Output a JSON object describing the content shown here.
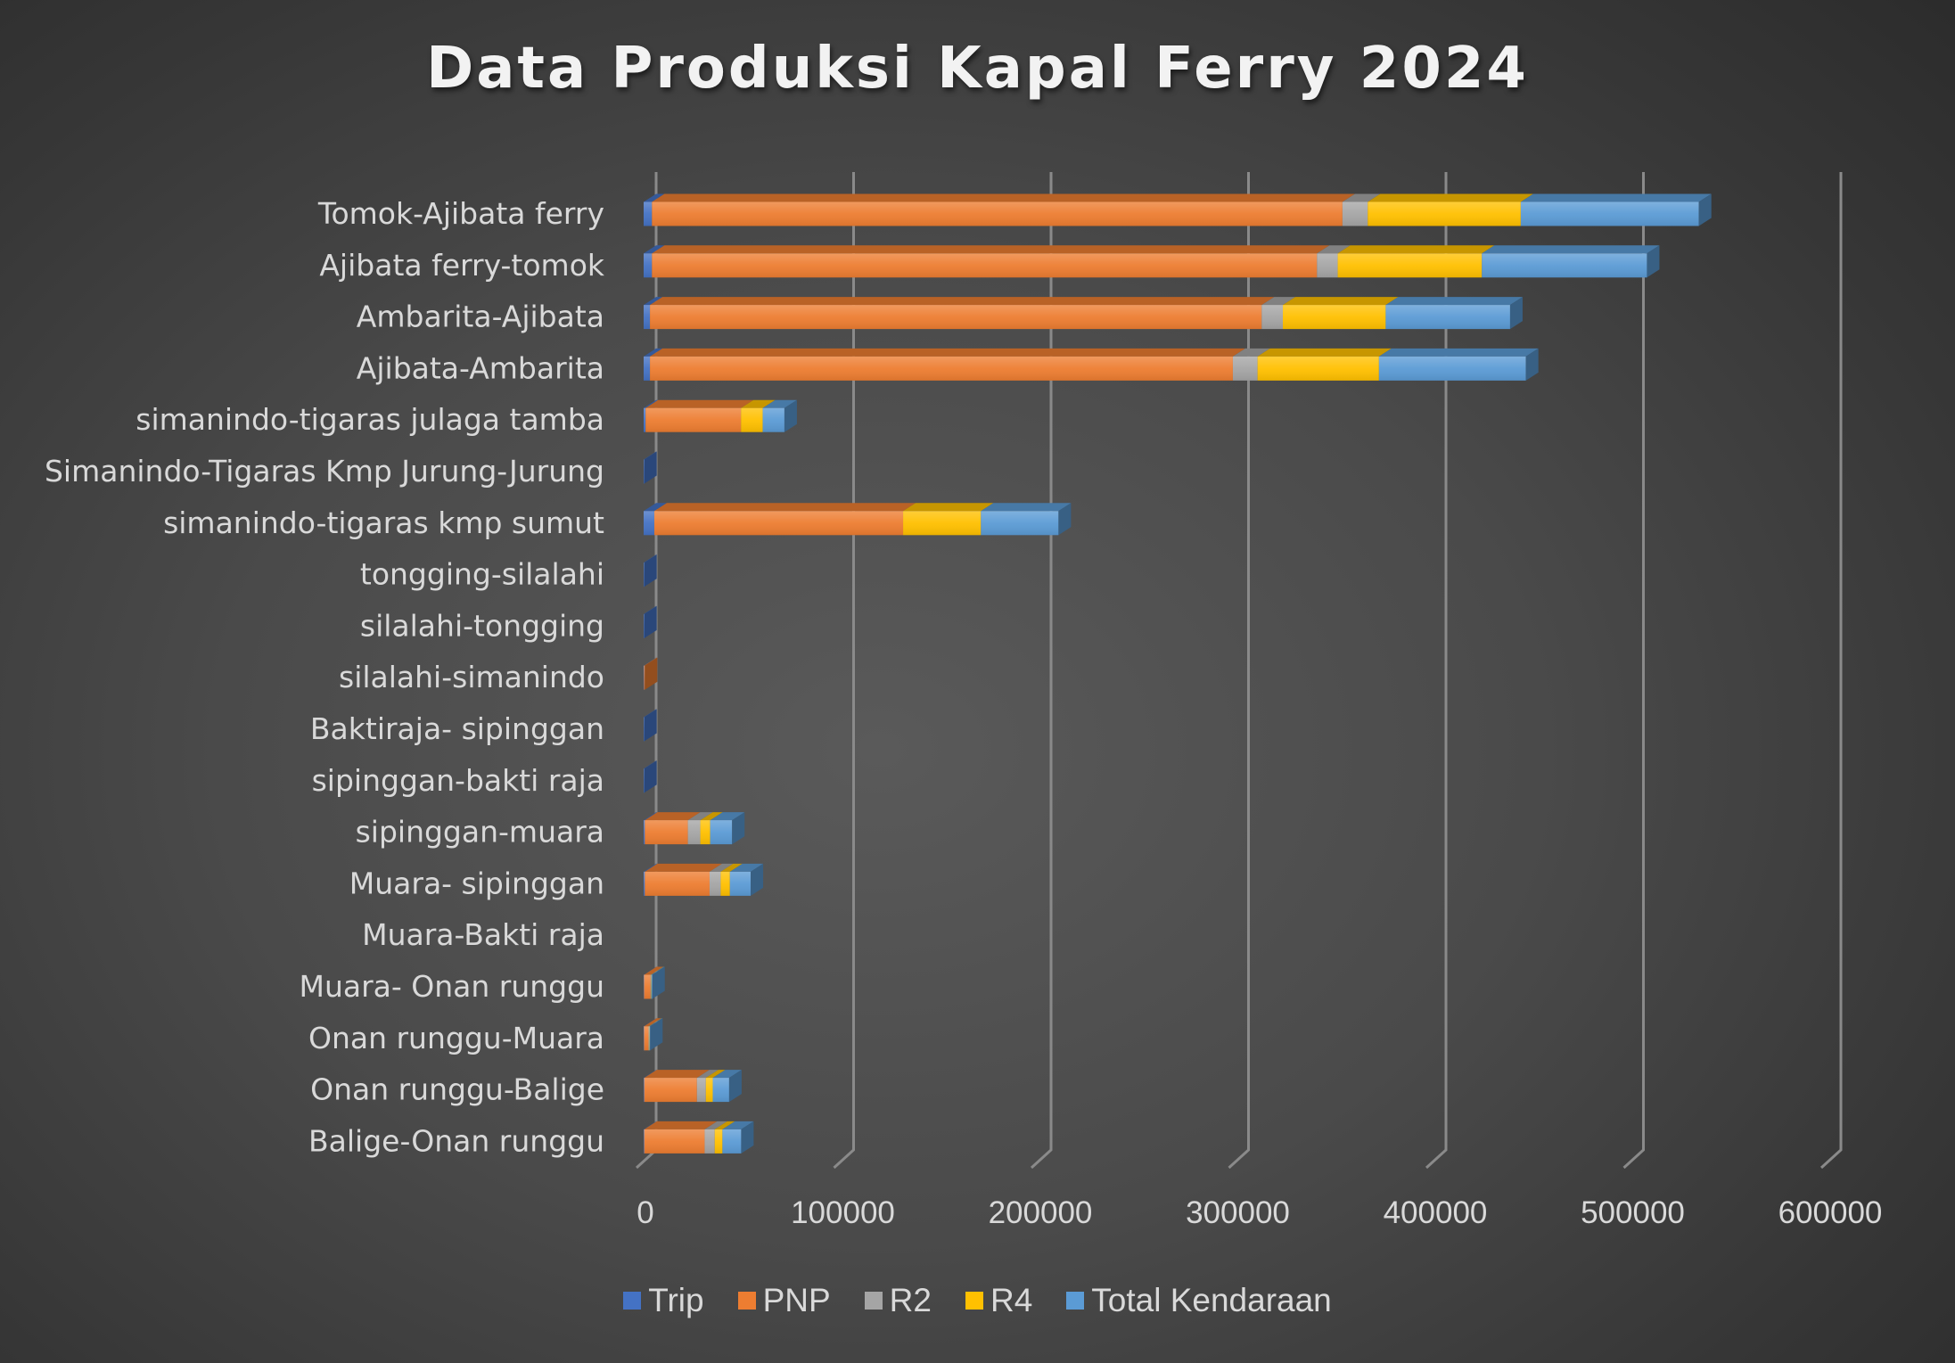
{
  "chart_data": {
    "type": "bar",
    "orientation": "horizontal",
    "stacked": true,
    "style": "3d",
    "title": "Data Produksi Kapal Ferry 2024",
    "xlabel": "",
    "ylabel": "",
    "xlim": [
      0,
      600000
    ],
    "x_ticks": [
      "0",
      "100000",
      "200000",
      "300000",
      "400000",
      "500000",
      "600000"
    ],
    "x_tick_values": [
      0,
      100000,
      200000,
      300000,
      400000,
      500000,
      600000
    ],
    "grid": true,
    "legend_position": "bottom",
    "categories": [
      "Tomok-Ajibata ferry",
      "Ajibata ferry-tomok",
      "Ambarita-Ajibata",
      "Ajibata-Ambarita",
      "simanindo-tigaras julaga tamba",
      "Simanindo-Tigaras Kmp Jurung-Jurung",
      "simanindo-tigaras kmp sumut",
      "tongging-silalahi",
      "silalahi-tongging",
      "silalahi-simanindo",
      "Baktiraja- sipinggan",
      "sipinggan-bakti raja",
      "sipinggan-muara",
      "Muara- sipinggan",
      "Muara-Bakti raja",
      "Muara- Onan runggu",
      "Onan runggu-Muara",
      "Onan runggu-Balige",
      "Balige-Onan runggu"
    ],
    "series": [
      {
        "name": "Trip",
        "color": "#4472C4",
        "values": [
          4200,
          4200,
          3200,
          3200,
          1000,
          300,
          5400,
          300,
          300,
          200,
          300,
          300,
          600,
          600,
          0,
          200,
          200,
          300,
          300
        ]
      },
      {
        "name": "PNP",
        "color": "#ED7D31",
        "values": [
          349700,
          336800,
          309800,
          295200,
          48300,
          0,
          126000,
          0,
          0,
          400,
          0,
          0,
          21800,
          32800,
          0,
          3300,
          2300,
          26700,
          30600
        ]
      },
      {
        "name": "R2",
        "color": "#A5A5A5",
        "values": [
          12800,
          10500,
          10700,
          12500,
          0,
          0,
          0,
          0,
          0,
          0,
          0,
          0,
          6300,
          5600,
          0,
          200,
          200,
          4500,
          5100
        ]
      },
      {
        "name": "R4",
        "color": "#FFC000",
        "values": [
          77500,
          73000,
          52100,
          61500,
          11000,
          0,
          39400,
          0,
          0,
          0,
          0,
          0,
          5000,
          4700,
          0,
          200,
          200,
          3500,
          3900
        ]
      },
      {
        "name": "Total Kendaraan",
        "color": "#5B9BD5",
        "values": [
          90200,
          83600,
          63000,
          74400,
          11000,
          0,
          39300,
          0,
          0,
          0,
          0,
          0,
          11100,
          10500,
          0,
          500,
          400,
          8300,
          9500
        ]
      }
    ]
  }
}
